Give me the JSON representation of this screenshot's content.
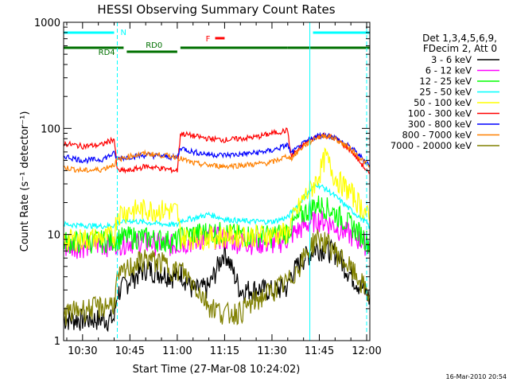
{
  "chart_data": {
    "type": "line",
    "title": "HESSI Observing Summary Count Rates",
    "xlabel": "Start Time (27-Mar-08 10:24:02)",
    "ylabel": "Count Rate (s⁻¹ detector⁻¹)",
    "yscale": "log",
    "ylim": [
      1,
      1000
    ],
    "xlim": [
      "10:24",
      "12:01"
    ],
    "x_ticks": [
      "10:30",
      "10:45",
      "11:00",
      "11:15",
      "11:30",
      "11:45",
      "12:00"
    ],
    "y_ticks": [
      "1",
      "10",
      "100",
      "1000"
    ],
    "grid": false,
    "legend_position": "right",
    "legend_header": [
      "Det 1,3,4,5,6,9,",
      "FDecim 2, Att 0"
    ],
    "timestamp": "16-Mar-2010 20:54",
    "flags": [
      {
        "label": "N",
        "color": "#00ffff"
      },
      {
        "label": "RD0",
        "color": "#007000"
      },
      {
        "label": "RD4",
        "color": "#007000"
      },
      {
        "label": "F",
        "color": "#ff0000"
      }
    ],
    "flag_bars": [
      {
        "name": "N",
        "color": "#00ffff",
        "segments": [
          [
            "10:24",
            "10:40"
          ],
          [
            "11:43",
            "12:01"
          ]
        ]
      },
      {
        "name": "RD",
        "color": "#007000",
        "segments": [
          [
            "10:24",
            "10:43"
          ],
          [
            "10:44",
            "11:00"
          ],
          [
            "11:01",
            "11:35"
          ],
          [
            "11:35",
            "12:01"
          ]
        ]
      },
      {
        "name": "F",
        "color": "#ff0000",
        "segments": [
          [
            "11:12",
            "11:15"
          ]
        ]
      }
    ],
    "vlines": [
      {
        "time": "10:24",
        "color": "#00ffff",
        "style": "solid"
      },
      {
        "time": "10:41",
        "color": "#00ffff",
        "style": "dashed"
      },
      {
        "time": "11:42",
        "color": "#00ffff",
        "style": "solid"
      },
      {
        "time": "12:00",
        "color": "#00ffff",
        "style": "dashed"
      }
    ],
    "x": [
      "10:24",
      "10:30",
      "10:36",
      "10:40",
      "10:41",
      "10:45",
      "10:50",
      "10:55",
      "11:00",
      "11:01",
      "11:05",
      "11:10",
      "11:15",
      "11:20",
      "11:25",
      "11:30",
      "11:35",
      "11:36",
      "11:40",
      "11:44",
      "11:47",
      "11:50",
      "11:55",
      "12:00",
      "12:01"
    ],
    "series": [
      {
        "name": "3 - 6 keV",
        "color": "#000000",
        "values": [
          1.6,
          1.6,
          1.6,
          1.6,
          2.8,
          3.8,
          4.8,
          4.4,
          4.0,
          4.5,
          3.0,
          3.2,
          7.2,
          3.0,
          3.1,
          3.0,
          3.2,
          4.2,
          6.0,
          7.5,
          7.4,
          6.8,
          4.2,
          2.8,
          2.4
        ]
      },
      {
        "name": "6 - 12 keV",
        "color": "#ff00ff",
        "values": [
          7.8,
          7.9,
          8.1,
          8.2,
          8.4,
          8.7,
          8.5,
          8.3,
          8.0,
          8.4,
          8.7,
          9.8,
          9.2,
          8.6,
          8.5,
          8.3,
          9.2,
          10.0,
          12.0,
          14.0,
          13.5,
          12.0,
          10.0,
          8.2,
          7.8
        ]
      },
      {
        "name": "12 - 25 keV",
        "color": "#00ff00",
        "values": [
          8.6,
          8.7,
          8.8,
          9.0,
          9.3,
          9.6,
          9.4,
          9.0,
          8.7,
          9.6,
          10.2,
          10.8,
          10.5,
          10.0,
          10.0,
          9.8,
          10.8,
          12.0,
          16.0,
          19.5,
          18.5,
          16.0,
          12.5,
          9.0,
          8.0
        ]
      },
      {
        "name": "25 - 50 keV",
        "color": "#00ffff",
        "values": [
          12.5,
          12.2,
          12.0,
          12.2,
          12.8,
          13.5,
          13.0,
          12.6,
          12.3,
          13.5,
          14.2,
          15.5,
          14.0,
          13.4,
          13.3,
          13.2,
          14.5,
          16.0,
          22.0,
          30.0,
          27.0,
          23.0,
          17.0,
          13.0,
          11.5
        ]
      },
      {
        "name": "50 - 100 keV",
        "color": "#ffff00",
        "values": [
          9.0,
          9.2,
          9.4,
          9.8,
          16.0,
          17.0,
          17.5,
          17.2,
          16.8,
          9.6,
          9.5,
          9.6,
          9.8,
          9.9,
          10.0,
          10.1,
          10.5,
          13.0,
          22.0,
          32.0,
          55.0,
          35.0,
          25.0,
          16.0,
          13.0
        ]
      },
      {
        "name": "100 - 300 keV",
        "color": "#ff0000",
        "values": [
          72,
          68,
          70,
          80,
          40,
          40,
          44,
          42,
          40,
          90,
          85,
          80,
          78,
          80,
          83,
          90,
          96,
          55,
          70,
          84,
          86,
          80,
          62,
          40,
          36
        ]
      },
      {
        "name": "300 - 800 keV",
        "color": "#0000ff",
        "values": [
          55,
          50,
          51,
          58,
          52,
          54,
          56,
          55,
          53,
          66,
          60,
          57,
          56,
          57,
          59,
          62,
          70,
          58,
          72,
          85,
          87,
          82,
          66,
          48,
          45
        ]
      },
      {
        "name": "800 - 7000 keV",
        "color": "#ff8000",
        "values": [
          43,
          40,
          41,
          46,
          50,
          55,
          58,
          56,
          54,
          52,
          47,
          45,
          44,
          45,
          46,
          48,
          55,
          52,
          68,
          82,
          86,
          80,
          64,
          46,
          42
        ]
      },
      {
        "name": "7000 - 20000 keV",
        "color": "#808000",
        "values": [
          1.8,
          2.0,
          2.1,
          2.3,
          3.8,
          5.0,
          6.0,
          5.5,
          4.5,
          4.8,
          3.5,
          2.2,
          1.8,
          1.9,
          2.4,
          3.0,
          3.6,
          3.9,
          6.0,
          9.5,
          8.5,
          7.0,
          4.8,
          3.0,
          2.6
        ]
      }
    ]
  }
}
